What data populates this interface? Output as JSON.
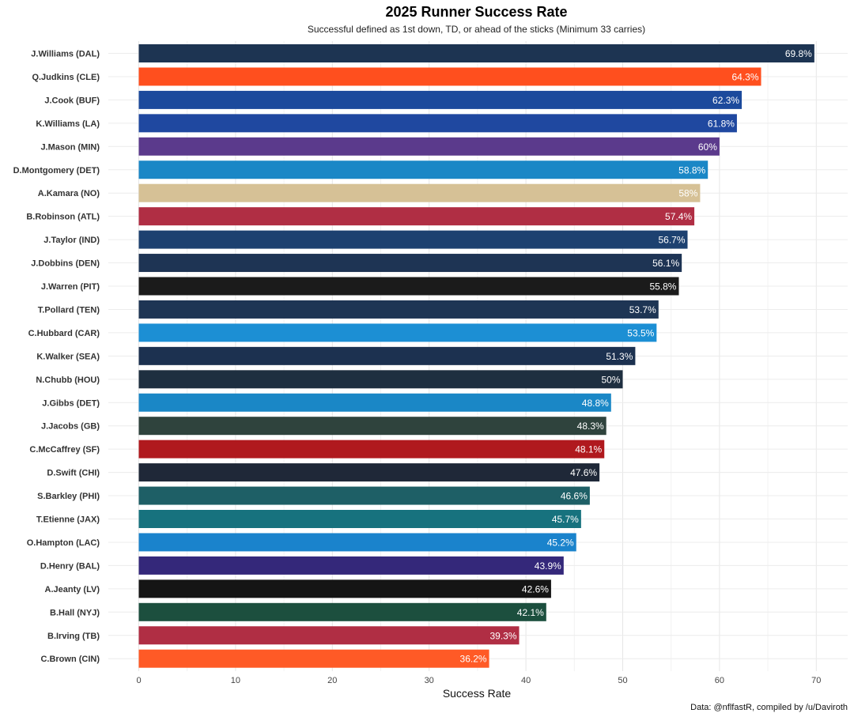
{
  "chart_data": {
    "type": "bar",
    "orientation": "horizontal",
    "title": "2025 Runner Success Rate",
    "subtitle": "Successful defined as 1st down, TD, or ahead of the sticks (Minimum 33 carries)",
    "xlabel": "Success Rate",
    "ylabel": "",
    "caption": "Data: @nflfastR, compiled by /u/Daviroth",
    "xlim": [
      0,
      72.5
    ],
    "xticks": [
      0,
      10,
      20,
      30,
      40,
      50,
      60,
      70
    ],
    "grid": true,
    "legend": "none",
    "categories": [
      "J.Williams (DAL)",
      "Q.Judkins (CLE)",
      "J.Cook (BUF)",
      "K.Williams (LA)",
      "J.Mason (MIN)",
      "D.Montgomery (DET)",
      "A.Kamara (NO)",
      "B.Robinson (ATL)",
      "J.Taylor (IND)",
      "J.Dobbins (DEN)",
      "J.Warren (PIT)",
      "T.Pollard (TEN)",
      "C.Hubbard (CAR)",
      "K.Walker (SEA)",
      "N.Chubb (HOU)",
      "J.Gibbs (DET)",
      "J.Jacobs (GB)",
      "C.McCaffrey (SF)",
      "D.Swift (CHI)",
      "S.Barkley (PHI)",
      "T.Etienne (JAX)",
      "O.Hampton (LAC)",
      "D.Henry (BAL)",
      "A.Jeanty (LV)",
      "B.Hall (NYJ)",
      "B.Irving (TB)",
      "C.Brown (CIN)"
    ],
    "values": [
      69.8,
      64.3,
      62.3,
      61.8,
      60,
      58.8,
      58,
      57.4,
      56.7,
      56.1,
      55.8,
      53.7,
      53.5,
      51.3,
      50,
      48.8,
      48.3,
      48.1,
      47.6,
      46.6,
      45.7,
      45.2,
      43.9,
      42.6,
      42.1,
      39.3,
      36.2
    ],
    "labels": [
      "69.8%",
      "64.3%",
      "62.3%",
      "61.8%",
      "60%",
      "58.8%",
      "58%",
      "57.4%",
      "56.7%",
      "56.1%",
      "55.8%",
      "53.7%",
      "53.5%",
      "51.3%",
      "50%",
      "48.8%",
      "48.3%",
      "48.1%",
      "47.6%",
      "46.6%",
      "45.7%",
      "45.2%",
      "43.9%",
      "42.6%",
      "42.1%",
      "39.3%",
      "36.2%"
    ],
    "colors": [
      "#1d3452",
      "#ff4f1e",
      "#1c4a9c",
      "#1f48a0",
      "#5b3a8c",
      "#1a87c6",
      "#d6c196",
      "#b02e44",
      "#1d4170",
      "#1e3454",
      "#1b1b1b",
      "#1e3554",
      "#1c8fd4",
      "#1c3150",
      "#1e2f40",
      "#1a87c6",
      "#2f433d",
      "#b0191e",
      "#1f2838",
      "#1e5f66",
      "#17727e",
      "#1a83cc",
      "#34287a",
      "#151515",
      "#1c4f3e",
      "#b02e44",
      "#ff5a26"
    ]
  }
}
